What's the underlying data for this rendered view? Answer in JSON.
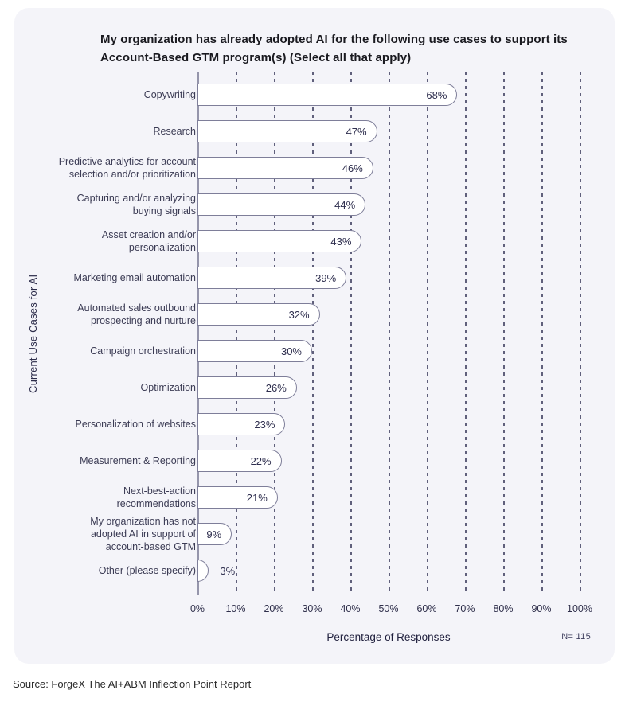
{
  "page": {
    "source_note": "Source: ForgeX The AI+ABM Inflection Point Report"
  },
  "chart_data": {
    "type": "bar",
    "orientation": "horizontal",
    "title": "My organization has already adopted AI for the following use cases to support its Account-Based GTM program(s) (Select all that apply)",
    "xlabel": "Percentage of Responses",
    "ylabel": "Current Use Cases for AI",
    "sample_size_note": "N= 115",
    "xlim": [
      0,
      100
    ],
    "x_ticks": [
      "0%",
      "10%",
      "20%",
      "30%",
      "40%",
      "50%",
      "60%",
      "70%",
      "80%",
      "90%",
      "100%"
    ],
    "grid": "vertical-dashed",
    "legend": "none",
    "categories": [
      "Copywriting",
      "Research",
      "Predictive analytics for account selection and/or prioritization",
      "Capturing and/or analyzing buying signals",
      "Asset creation and/or personalization",
      "Marketing email automation",
      "Automated sales outbound prospecting and nurture",
      "Campaign orchestration",
      "Optimization",
      "Personalization of websites",
      "Measurement & Reporting",
      "Next-best-action recommendations",
      "My organization has not adopted AI in support of account-based GTM",
      "Other (please specify)"
    ],
    "values": [
      68,
      47,
      46,
      44,
      43,
      39,
      32,
      30,
      26,
      23,
      22,
      21,
      9,
      3
    ],
    "bar_labels": [
      "68%",
      "47%",
      "46%",
      "44%",
      "43%",
      "39%",
      "32%",
      "30%",
      "26%",
      "23%",
      "22%",
      "21%",
      "9%",
      "3%"
    ],
    "colors": {
      "card_background": "#f4f4f9",
      "bar_fill": "#ffffff",
      "bar_border": "#7e7e99",
      "gridline": "#60607c",
      "axis_line": "#9595ab",
      "title_text": "#1a1a20",
      "label_text": "#3b3b54",
      "value_text": "#2e2e4e"
    }
  }
}
